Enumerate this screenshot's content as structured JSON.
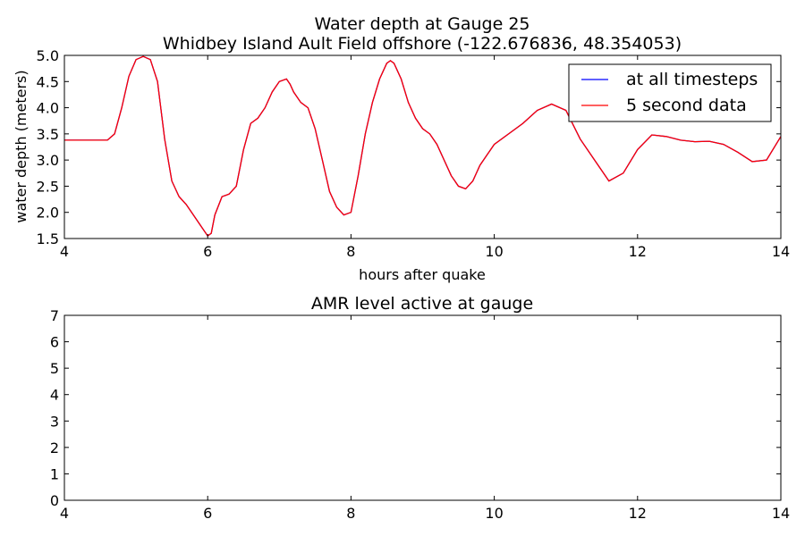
{
  "chart_data": [
    {
      "type": "line",
      "title": "Water depth at Gauge 25",
      "subtitle": "Whidbey Island Ault Field offshore  (-122.676836, 48.354053)",
      "xlabel": "hours after quake",
      "ylabel": "water depth (meters)",
      "xlim": [
        4,
        14
      ],
      "ylim": [
        1.5,
        5.0
      ],
      "xticks": [
        "4",
        "6",
        "8",
        "10",
        "12",
        "14"
      ],
      "yticks": [
        "1.5",
        "2.0",
        "2.5",
        "3.0",
        "3.5",
        "4.0",
        "4.5",
        "5.0"
      ],
      "grid": false,
      "legend_position": "top-right",
      "series": [
        {
          "name": "at all timesteps",
          "color": "#0000ff",
          "x": [
            4.0,
            4.6,
            4.7,
            4.8,
            4.9,
            5.0,
            5.1,
            5.2,
            5.3,
            5.4,
            5.5,
            5.6,
            5.7,
            5.8,
            5.9,
            6.0,
            6.05,
            6.1,
            6.2,
            6.3,
            6.4,
            6.5,
            6.6,
            6.7,
            6.8,
            6.9,
            7.0,
            7.1,
            7.15,
            7.2,
            7.3,
            7.4,
            7.5,
            7.6,
            7.7,
            7.8,
            7.9,
            8.0,
            8.1,
            8.2,
            8.3,
            8.4,
            8.5,
            8.55,
            8.6,
            8.7,
            8.8,
            8.9,
            9.0,
            9.1,
            9.2,
            9.3,
            9.4,
            9.5,
            9.6,
            9.7,
            9.8,
            9.9,
            10.0,
            10.2,
            10.4,
            10.6,
            10.8,
            11.0,
            11.2,
            11.4,
            11.6,
            11.8,
            12.0,
            12.2,
            12.4,
            12.6,
            12.8,
            13.0,
            13.2,
            13.4,
            13.6,
            13.8,
            14.0
          ],
          "values": [
            3.38,
            3.38,
            3.5,
            4.0,
            4.6,
            4.92,
            4.98,
            4.92,
            4.5,
            3.4,
            2.6,
            2.3,
            2.15,
            1.95,
            1.75,
            1.55,
            1.6,
            1.95,
            2.3,
            2.35,
            2.5,
            3.2,
            3.7,
            3.8,
            4.0,
            4.3,
            4.5,
            4.55,
            4.45,
            4.3,
            4.1,
            4.0,
            3.6,
            3.0,
            2.4,
            2.1,
            1.95,
            2.0,
            2.7,
            3.5,
            4.1,
            4.55,
            4.85,
            4.9,
            4.85,
            4.55,
            4.1,
            3.8,
            3.6,
            3.5,
            3.3,
            3.0,
            2.7,
            2.5,
            2.45,
            2.6,
            2.9,
            3.1,
            3.3,
            3.5,
            3.7,
            3.95,
            4.07,
            3.95,
            3.4,
            3.0,
            2.6,
            2.75,
            3.2,
            3.48,
            3.45,
            3.38,
            3.35,
            3.36,
            3.3,
            3.15,
            2.97,
            3.0,
            3.45
          ]
        },
        {
          "name": "5 second data",
          "color": "#ff0000",
          "x": [
            4.0,
            4.6,
            4.7,
            4.8,
            4.9,
            5.0,
            5.1,
            5.2,
            5.3,
            5.4,
            5.5,
            5.6,
            5.7,
            5.8,
            5.9,
            6.0,
            6.05,
            6.1,
            6.2,
            6.3,
            6.4,
            6.5,
            6.6,
            6.7,
            6.8,
            6.9,
            7.0,
            7.1,
            7.15,
            7.2,
            7.3,
            7.4,
            7.5,
            7.6,
            7.7,
            7.8,
            7.9,
            8.0,
            8.1,
            8.2,
            8.3,
            8.4,
            8.5,
            8.55,
            8.6,
            8.7,
            8.8,
            8.9,
            9.0,
            9.1,
            9.2,
            9.3,
            9.4,
            9.5,
            9.6,
            9.7,
            9.8,
            9.9,
            10.0,
            10.2,
            10.4,
            10.6,
            10.8,
            11.0,
            11.2,
            11.4,
            11.6,
            11.8,
            12.0,
            12.2,
            12.4,
            12.6,
            12.8,
            13.0,
            13.2,
            13.4,
            13.6,
            13.8,
            14.0
          ],
          "values": [
            3.38,
            3.38,
            3.5,
            4.0,
            4.6,
            4.92,
            4.98,
            4.92,
            4.5,
            3.4,
            2.6,
            2.3,
            2.15,
            1.95,
            1.75,
            1.55,
            1.6,
            1.95,
            2.3,
            2.35,
            2.5,
            3.2,
            3.7,
            3.8,
            4.0,
            4.3,
            4.5,
            4.55,
            4.45,
            4.3,
            4.1,
            4.0,
            3.6,
            3.0,
            2.4,
            2.1,
            1.95,
            2.0,
            2.7,
            3.5,
            4.1,
            4.55,
            4.85,
            4.9,
            4.85,
            4.55,
            4.1,
            3.8,
            3.6,
            3.5,
            3.3,
            3.0,
            2.7,
            2.5,
            2.45,
            2.6,
            2.9,
            3.1,
            3.3,
            3.5,
            3.7,
            3.95,
            4.07,
            3.95,
            3.4,
            3.0,
            2.6,
            2.75,
            3.2,
            3.48,
            3.45,
            3.38,
            3.35,
            3.36,
            3.3,
            3.15,
            2.97,
            3.0,
            3.45
          ]
        }
      ]
    },
    {
      "type": "line",
      "title": "AMR level active at gauge",
      "xlabel": "",
      "ylabel": "",
      "xlim": [
        4,
        14
      ],
      "ylim": [
        0,
        7
      ],
      "xticks": [
        "4",
        "6",
        "8",
        "10",
        "12",
        "14"
      ],
      "yticks": [
        "0",
        "1",
        "2",
        "3",
        "4",
        "5",
        "6",
        "7"
      ],
      "grid": false,
      "series": []
    }
  ]
}
